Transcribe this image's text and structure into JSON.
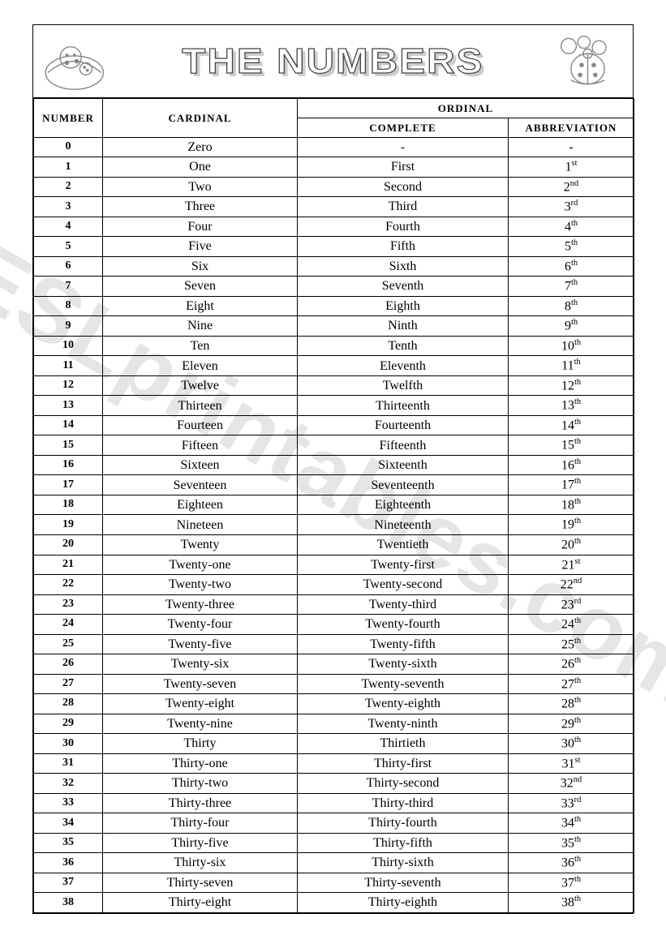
{
  "title": "THE NUMBERS",
  "watermark": "ESLprintables.com",
  "headers": {
    "number": "NUMBER",
    "cardinal": "CARDINAL",
    "ordinal": "ORDINAL",
    "complete": "COMPLETE",
    "abbreviation": "ABBREVIATION"
  },
  "rows": [
    {
      "n": "0",
      "card": "Zero",
      "ordc": "-",
      "ordn": "-",
      "ords": ""
    },
    {
      "n": "1",
      "card": "One",
      "ordc": "First",
      "ordn": "1",
      "ords": "st"
    },
    {
      "n": "2",
      "card": "Two",
      "ordc": "Second",
      "ordn": "2",
      "ords": "nd"
    },
    {
      "n": "3",
      "card": "Three",
      "ordc": "Third",
      "ordn": "3",
      "ords": "rd"
    },
    {
      "n": "4",
      "card": "Four",
      "ordc": "Fourth",
      "ordn": "4",
      "ords": "th"
    },
    {
      "n": "5",
      "card": "Five",
      "ordc": "Fifth",
      "ordn": "5",
      "ords": "th"
    },
    {
      "n": "6",
      "card": "Six",
      "ordc": "Sixth",
      "ordn": "6",
      "ords": "th"
    },
    {
      "n": "7",
      "card": "Seven",
      "ordc": "Seventh",
      "ordn": "7",
      "ords": "th"
    },
    {
      "n": "8",
      "card": "Eight",
      "ordc": "Eighth",
      "ordn": "8",
      "ords": "th"
    },
    {
      "n": "9",
      "card": "Nine",
      "ordc": "Ninth",
      "ordn": "9",
      "ords": "th"
    },
    {
      "n": "10",
      "card": "Ten",
      "ordc": "Tenth",
      "ordn": "10",
      "ords": "th"
    },
    {
      "n": "11",
      "card": "Eleven",
      "ordc": "Eleventh",
      "ordn": "11",
      "ords": "th"
    },
    {
      "n": "12",
      "card": "Twelve",
      "ordc": "Twelfth",
      "ordn": "12",
      "ords": "th"
    },
    {
      "n": "13",
      "card": "Thirteen",
      "ordc": "Thirteenth",
      "ordn": "13",
      "ords": "th"
    },
    {
      "n": "14",
      "card": "Fourteen",
      "ordc": "Fourteenth",
      "ordn": "14",
      "ords": "th"
    },
    {
      "n": "15",
      "card": "Fifteen",
      "ordc": "Fifteenth",
      "ordn": "15",
      "ords": "th"
    },
    {
      "n": "16",
      "card": "Sixteen",
      "ordc": "Sixteenth",
      "ordn": "16",
      "ords": "th"
    },
    {
      "n": "17",
      "card": "Seventeen",
      "ordc": "Seventeenth",
      "ordn": "17",
      "ords": "th"
    },
    {
      "n": "18",
      "card": "Eighteen",
      "ordc": "Eighteenth",
      "ordn": "18",
      "ords": "th"
    },
    {
      "n": "19",
      "card": "Nineteen",
      "ordc": "Nineteenth",
      "ordn": "19",
      "ords": "th"
    },
    {
      "n": "20",
      "card": "Twenty",
      "ordc": "Twentieth",
      "ordn": "20",
      "ords": "th"
    },
    {
      "n": "21",
      "card": "Twenty-one",
      "ordc": "Twenty-first",
      "ordn": "21",
      "ords": "st"
    },
    {
      "n": "22",
      "card": "Twenty-two",
      "ordc": "Twenty-second",
      "ordn": "22",
      "ords": "nd"
    },
    {
      "n": "23",
      "card": "Twenty-three",
      "ordc": "Twenty-third",
      "ordn": "23",
      "ords": "rd"
    },
    {
      "n": "24",
      "card": "Twenty-four",
      "ordc": "Twenty-fourth",
      "ordn": "24",
      "ords": "th"
    },
    {
      "n": "25",
      "card": "Twenty-five",
      "ordc": "Twenty-fifth",
      "ordn": "25",
      "ords": "th"
    },
    {
      "n": "26",
      "card": "Twenty-six",
      "ordc": "Twenty-sixth",
      "ordn": "26",
      "ords": "th"
    },
    {
      "n": "27",
      "card": "Twenty-seven",
      "ordc": "Twenty-seventh",
      "ordn": "27",
      "ords": "th"
    },
    {
      "n": "28",
      "card": "Twenty-eight",
      "ordc": "Twenty-eighth",
      "ordn": "28",
      "ords": "th"
    },
    {
      "n": "29",
      "card": "Twenty-nine",
      "ordc": "Twenty-ninth",
      "ordn": "29",
      "ords": "th"
    },
    {
      "n": "30",
      "card": "Thirty",
      "ordc": "Thirtieth",
      "ordn": "30",
      "ords": "th"
    },
    {
      "n": "31",
      "card": "Thirty-one",
      "ordc": "Thirty-first",
      "ordn": "31",
      "ords": "st"
    },
    {
      "n": "32",
      "card": "Thirty-two",
      "ordc": "Thirty-second",
      "ordn": "32",
      "ords": "nd"
    },
    {
      "n": "33",
      "card": "Thirty-three",
      "ordc": "Thirty-third",
      "ordn": "33",
      "ords": "rd"
    },
    {
      "n": "34",
      "card": "Thirty-four",
      "ordc": "Thirty-fourth",
      "ordn": "34",
      "ords": "th"
    },
    {
      "n": "35",
      "card": "Thirty-five",
      "ordc": "Thirty-fifth",
      "ordn": "35",
      "ords": "th"
    },
    {
      "n": "36",
      "card": "Thirty-six",
      "ordc": "Thirty-sixth",
      "ordn": "36",
      "ords": "th"
    },
    {
      "n": "37",
      "card": "Thirty-seven",
      "ordc": "Thirty-seventh",
      "ordn": "37",
      "ords": "th"
    },
    {
      "n": "38",
      "card": "Thirty-eight",
      "ordc": "Thirty-eighth",
      "ordn": "38",
      "ords": "th"
    }
  ]
}
